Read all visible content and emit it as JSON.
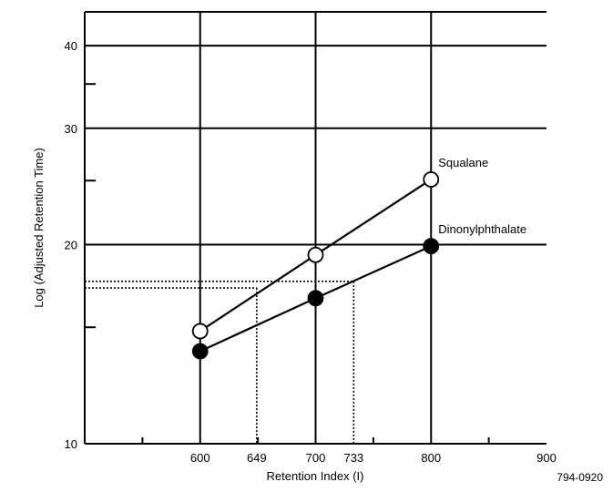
{
  "chart_data": {
    "type": "line",
    "title": "",
    "xlabel": "Retention Index (I)",
    "ylabel": "Log (Adjusted Retention Time)",
    "x_scale": "linear",
    "y_scale": "log",
    "xlim": [
      500,
      900
    ],
    "ylim": [
      10,
      45
    ],
    "grid": true,
    "x_major_ticks": [
      600,
      700,
      800
    ],
    "x_minor_ticks": [
      550,
      650,
      750,
      850
    ],
    "x_tick_labels": [
      {
        "value": 600,
        "label": "600"
      },
      {
        "value": 649,
        "label": "649"
      },
      {
        "value": 700,
        "label": "700"
      },
      {
        "value": 733,
        "label": "733"
      },
      {
        "value": 800,
        "label": "800"
      },
      {
        "value": 900,
        "label": "900"
      }
    ],
    "y_gridlines": [
      20,
      30,
      40
    ],
    "y_minor_ticks": [
      15,
      25,
      35
    ],
    "y_tick_labels": [
      {
        "value": 10,
        "label": "10"
      },
      {
        "value": 20,
        "label": "20"
      },
      {
        "value": 30,
        "label": "30"
      },
      {
        "value": 40,
        "label": "40"
      }
    ],
    "series": [
      {
        "name": "Squalane",
        "marker": "open-circle",
        "points": [
          {
            "x": 600,
            "y": 14.8
          },
          {
            "x": 700,
            "y": 19.3
          },
          {
            "x": 800,
            "y": 25.1
          }
        ]
      },
      {
        "name": "Dinonylphthalate",
        "marker": "filled-circle",
        "points": [
          {
            "x": 600,
            "y": 13.8
          },
          {
            "x": 700,
            "y": 16.6
          },
          {
            "x": 800,
            "y": 19.9
          }
        ]
      }
    ],
    "reference_lines": [
      {
        "name": "dinonylphthalate-reading",
        "y": 17.6,
        "x": 733
      },
      {
        "name": "squalane-reading",
        "y": 17.2,
        "x": 649
      }
    ]
  },
  "figure_code": "794-0920"
}
